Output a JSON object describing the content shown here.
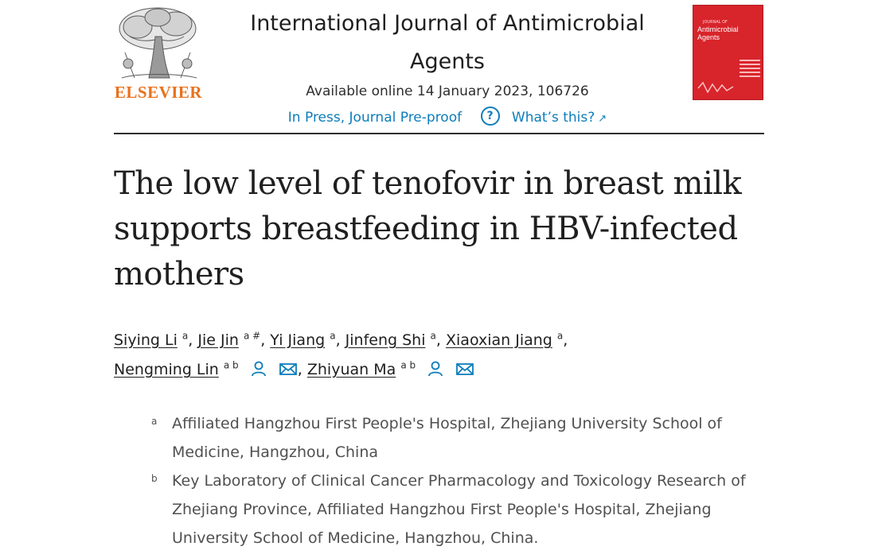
{
  "publisher": {
    "name": "ELSEVIER",
    "logo_icon": "elsevier-tree-icon",
    "name_color": "#e9711c"
  },
  "journal": {
    "title": "International Journal of Antimicrobial Agents",
    "availability": "Available online 14 January 2023, 106726",
    "status_link": "In Press, Journal Pre-proof",
    "help_link": "What’s this?",
    "link_color": "#0c7dbb"
  },
  "cover": {
    "small_text": "JOURNAL OF",
    "title": "Antimicrobial Agents",
    "background": "#d8242b"
  },
  "article": {
    "title": "The low level of tenofovir in breast milk supports breastfeeding in HBV-infected mothers"
  },
  "authors": [
    {
      "name": "Siying Li",
      "sup": "a"
    },
    {
      "name": "Jie Jin",
      "sup": "a #"
    },
    {
      "name": "Yi Jiang",
      "sup": "a"
    },
    {
      "name": "Jinfeng Shi",
      "sup": "a"
    },
    {
      "name": "Xiaoxian Jiang",
      "sup": "a"
    },
    {
      "name": "Nengming Lin",
      "sup": "a b"
    },
    {
      "name": "Zhiyuan Ma",
      "sup": "a b"
    }
  ],
  "affiliations": [
    {
      "label": "a",
      "text": "Affiliated Hangzhou First People's Hospital, Zhejiang University School of Medicine, Hangzhou, China"
    },
    {
      "label": "b",
      "text": "Key Laboratory of Clinical Cancer Pharmacology and Toxicology Research of Zhejiang Province, Affiliated Hangzhou First People's Hospital, Zhejiang University School of Medicine, Hangzhou, China."
    }
  ]
}
